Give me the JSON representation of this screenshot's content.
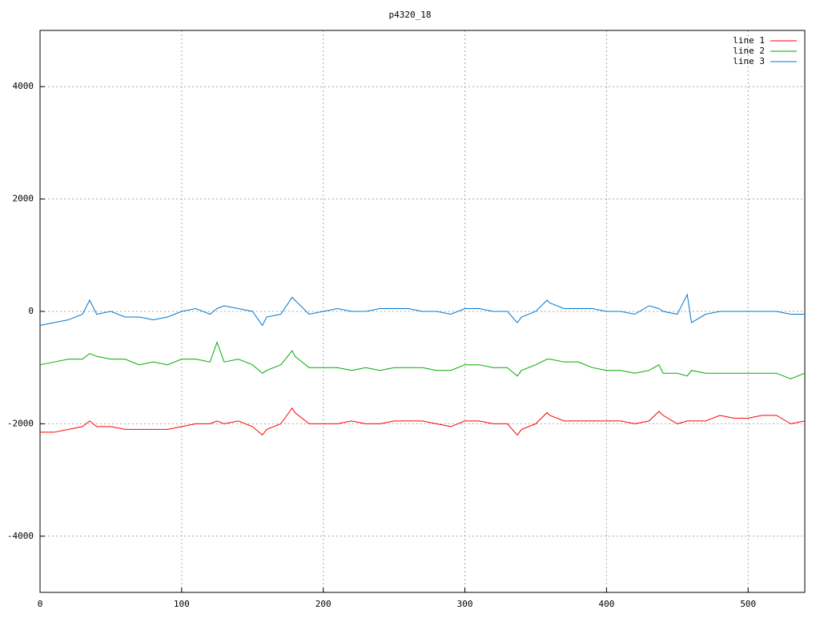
{
  "chart_data": {
    "type": "line",
    "title": "p4320_18",
    "x": [
      0,
      10,
      20,
      30,
      35,
      40,
      50,
      60,
      70,
      80,
      90,
      100,
      110,
      120,
      125,
      130,
      140,
      150,
      157,
      160,
      170,
      178,
      180,
      190,
      200,
      210,
      220,
      230,
      240,
      250,
      260,
      270,
      280,
      290,
      300,
      310,
      320,
      330,
      337,
      340,
      350,
      358,
      360,
      370,
      380,
      390,
      400,
      410,
      420,
      430,
      437,
      440,
      450,
      457,
      460,
      470,
      480,
      490,
      500,
      510,
      520,
      530,
      540
    ],
    "series": [
      {
        "name": "line 1",
        "color": "#ff0000",
        "values": [
          -2150,
          -2150,
          -2100,
          -2050,
          -1950,
          -2050,
          -2050,
          -2100,
          -2100,
          -2100,
          -2100,
          -2050,
          -2000,
          -2000,
          -1950,
          -2000,
          -1950,
          -2050,
          -2200,
          -2100,
          -2000,
          -1720,
          -1800,
          -2000,
          -2000,
          -2000,
          -1950,
          -2000,
          -2000,
          -1950,
          -1950,
          -1950,
          -2000,
          -2050,
          -1950,
          -1950,
          -2000,
          -2000,
          -2200,
          -2100,
          -2000,
          -1800,
          -1850,
          -1950,
          -1950,
          -1950,
          -1950,
          -1950,
          -2000,
          -1950,
          -1780,
          -1850,
          -2000,
          -1950,
          -1950,
          -1950,
          -1850,
          -1900,
          -1900,
          -1850,
          -1850,
          -2000,
          -1950
        ]
      },
      {
        "name": "line 2",
        "color": "#00aa00",
        "values": [
          -950,
          -900,
          -850,
          -850,
          -750,
          -800,
          -850,
          -850,
          -950,
          -900,
          -950,
          -850,
          -850,
          -900,
          -550,
          -900,
          -850,
          -950,
          -1100,
          -1050,
          -950,
          -700,
          -800,
          -1000,
          -1000,
          -1000,
          -1050,
          -1000,
          -1050,
          -1000,
          -1000,
          -1000,
          -1050,
          -1050,
          -950,
          -950,
          -1000,
          -1000,
          -1150,
          -1050,
          -950,
          -850,
          -850,
          -900,
          -900,
          -1000,
          -1050,
          -1050,
          -1100,
          -1050,
          -950,
          -1100,
          -1100,
          -1150,
          -1050,
          -1100,
          -1100,
          -1100,
          -1100,
          -1100,
          -1100,
          -1200,
          -1100
        ]
      },
      {
        "name": "line 3",
        "color": "#0077cc",
        "values": [
          -250,
          -200,
          -150,
          -50,
          200,
          -50,
          0,
          -100,
          -100,
          -150,
          -100,
          0,
          50,
          -50,
          50,
          100,
          50,
          0,
          -250,
          -100,
          -50,
          250,
          200,
          -50,
          0,
          50,
          0,
          0,
          50,
          50,
          50,
          0,
          0,
          -50,
          50,
          50,
          0,
          0,
          -200,
          -100,
          0,
          200,
          150,
          50,
          50,
          50,
          0,
          0,
          -50,
          100,
          50,
          0,
          -50,
          300,
          -200,
          -50,
          0,
          0,
          0,
          0,
          0,
          -50,
          -50
        ]
      }
    ],
    "xlim": [
      0,
      540
    ],
    "ylim": [
      -5000,
      5000
    ],
    "xticks": [
      0,
      100,
      200,
      300,
      400,
      500
    ],
    "yticks": [
      -4000,
      -2000,
      0,
      2000,
      4000
    ],
    "grid": true,
    "legend": "top-right"
  }
}
